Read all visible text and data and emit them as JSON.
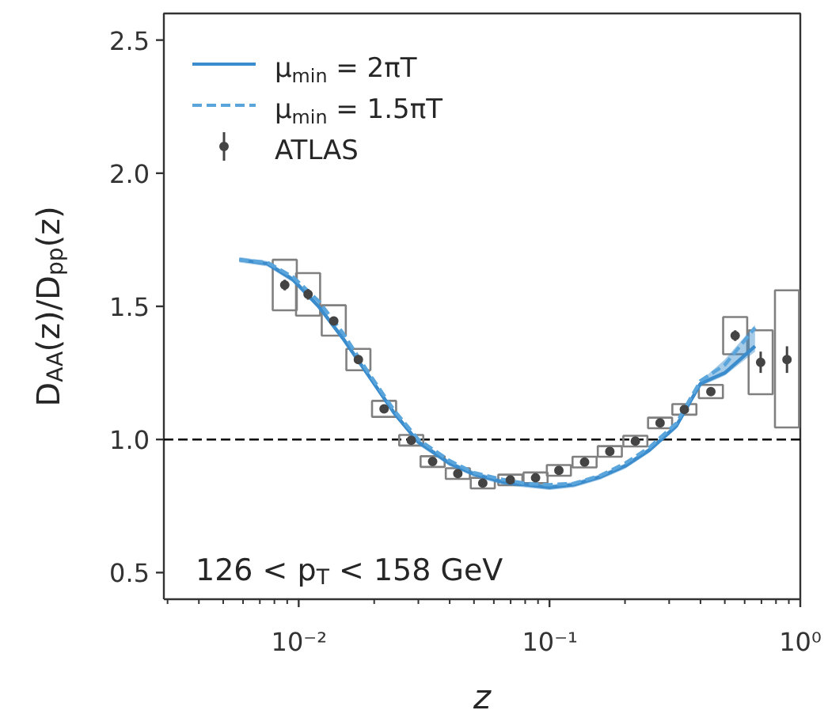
{
  "chart_data": {
    "type": "line",
    "xlabel": "z",
    "ylabel": "D$_{AA}$(z)/D$_{pp}$(z)",
    "annotations": [
      "126 < p$_{T}$ < 158 GeV"
    ],
    "log": "x",
    "xlim": [
      0.0029,
      1.0
    ],
    "ylim": [
      0.4,
      2.6
    ],
    "xticks": [
      {
        "value": 0.01,
        "label": "10⁻²"
      },
      {
        "value": 0.1,
        "label": "10⁻¹"
      },
      {
        "value": 1.0,
        "label": "10⁰"
      }
    ],
    "yticks": [
      0.5,
      {
        "value": 1.0,
        "label": "1.0"
      },
      1.5,
      {
        "value": 2.0,
        "label": "2.0"
      },
      2.5
    ],
    "grid": false,
    "legend": "top left",
    "ref_lines": [
      {
        "axis": "y",
        "value": 1.0,
        "label": null,
        "color": "#000000",
        "line_style": "dashed"
      }
    ],
    "series": [
      {
        "name": "μ$_{min}$ = 2πT",
        "color": "#3a8ccc",
        "line_style": "solid",
        "x": [
          0.0058,
          0.0075,
          0.0095,
          0.012,
          0.015,
          0.019,
          0.024,
          0.03,
          0.04,
          0.05,
          0.065,
          0.08,
          0.1,
          0.125,
          0.16,
          0.2,
          0.25,
          0.32,
          0.4,
          0.5,
          0.66
        ],
        "values": [
          1.675,
          1.66,
          1.6,
          1.5,
          1.38,
          1.24,
          1.1,
          0.99,
          0.91,
          0.87,
          0.84,
          0.83,
          0.82,
          0.83,
          0.86,
          0.9,
          0.96,
          1.05,
          1.21,
          1.25,
          1.35
        ],
        "lower": [
          1.665,
          1.65,
          1.59,
          1.49,
          1.37,
          1.23,
          1.09,
          0.98,
          0.9,
          0.86,
          0.83,
          0.82,
          0.81,
          0.82,
          0.85,
          0.89,
          0.95,
          1.04,
          1.2,
          1.24,
          1.33
        ],
        "upper": [
          1.685,
          1.67,
          1.61,
          1.51,
          1.39,
          1.25,
          1.11,
          1.0,
          0.92,
          0.88,
          0.85,
          0.84,
          0.83,
          0.84,
          0.87,
          0.91,
          0.97,
          1.06,
          1.22,
          1.3,
          1.43
        ]
      },
      {
        "type": "line",
        "name": "μ$_{min}$ = 1.5πT",
        "color": "#5aa5dc",
        "line_style": "dashed",
        "x": [
          0.0058,
          0.0075,
          0.0095,
          0.012,
          0.015,
          0.019,
          0.024,
          0.03,
          0.04,
          0.05,
          0.065,
          0.08,
          0.1,
          0.125,
          0.16,
          0.2,
          0.25,
          0.32,
          0.4,
          0.5,
          0.66
        ],
        "values": [
          1.675,
          1.665,
          1.61,
          1.52,
          1.4,
          1.25,
          1.11,
          1.0,
          0.92,
          0.875,
          0.85,
          0.835,
          0.83,
          0.835,
          0.865,
          0.91,
          0.97,
          1.06,
          1.22,
          1.28,
          1.42
        ]
      },
      {
        "type": "scatter",
        "name": "ATLAS",
        "color": "#444444",
        "marker": "circle",
        "x": [
          0.0088,
          0.0109,
          0.0138,
          0.0173,
          0.0219,
          0.0281,
          0.0342,
          0.0431,
          0.0542,
          0.0698,
          0.088,
          0.109,
          0.138,
          0.174,
          0.22,
          0.276,
          0.345,
          0.44,
          0.55,
          0.695,
          0.885
        ],
        "values": [
          1.58,
          1.545,
          1.445,
          1.3,
          1.115,
          0.997,
          0.917,
          0.872,
          0.836,
          0.848,
          0.856,
          0.884,
          0.915,
          0.955,
          0.994,
          1.062,
          1.113,
          1.18,
          1.39,
          1.29,
          1.3
        ],
        "errors": [
          0.02,
          0.02,
          0.015,
          0.01,
          0.01,
          0.01,
          0.01,
          0.01,
          0.01,
          0.01,
          0.01,
          0.01,
          0.01,
          0.01,
          0.01,
          0.01,
          0.01,
          0.015,
          0.02,
          0.04,
          0.05
        ]
      },
      {
        "type": "bar",
        "color": "#808080",
        "x": [
          0.0088,
          0.0109,
          0.0138,
          0.0173,
          0.0219,
          0.0281,
          0.0342,
          0.0431,
          0.0542,
          0.0698,
          0.088,
          0.109,
          0.138,
          0.174,
          0.22,
          0.276,
          0.345,
          0.44,
          0.55,
          0.695,
          0.885
        ],
        "base": [
          1.485,
          1.465,
          1.39,
          1.26,
          1.085,
          0.977,
          0.897,
          0.852,
          0.816,
          0.828,
          0.836,
          0.864,
          0.895,
          0.935,
          0.974,
          1.042,
          1.093,
          1.155,
          1.32,
          1.17,
          1.045
        ],
        "values": [
          0.19,
          0.16,
          0.114,
          0.08,
          0.06,
          0.04,
          0.04,
          0.04,
          0.04,
          0.04,
          0.04,
          0.04,
          0.04,
          0.04,
          0.04,
          0.04,
          0.04,
          0.05,
          0.14,
          0.24,
          0.515
        ]
      }
    ]
  }
}
